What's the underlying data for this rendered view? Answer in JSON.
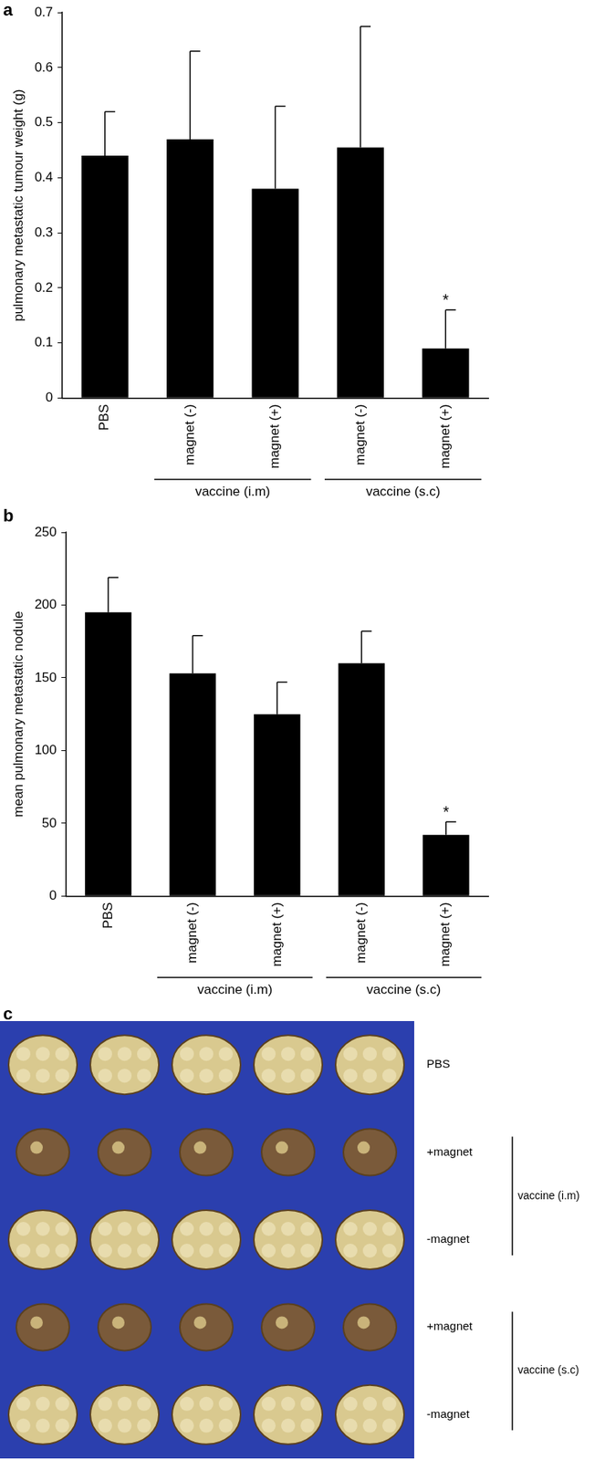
{
  "chart_data": [
    {
      "type": "bar",
      "panel": "a",
      "y_label": "pulmonary metastatic tumour weight (g)",
      "categories": [
        "PBS",
        "magnet (-)",
        "magnet (+)",
        "magnet (-)",
        "magnet (+)"
      ],
      "groups": [
        null,
        "vaccine (i.m)",
        "vaccine (i.m)",
        "vaccine (s.c)",
        "vaccine (s.c)"
      ],
      "values": [
        0.44,
        0.47,
        0.38,
        0.455,
        0.09
      ],
      "error": [
        0.08,
        0.16,
        0.15,
        0.22,
        0.07
      ],
      "significance": [
        null,
        null,
        null,
        null,
        "*"
      ],
      "color": "#000000",
      "ylim": [
        0,
        0.7
      ],
      "yticks": [
        0,
        0.1,
        0.2,
        0.3,
        0.4,
        0.5,
        0.6,
        0.7
      ],
      "grid": false
    },
    {
      "type": "bar",
      "panel": "b",
      "y_label": "mean pulmonary metastatic nodule",
      "categories": [
        "PBS",
        "magnet (-)",
        "magnet (+)",
        "magnet (-)",
        "magnet (+)"
      ],
      "groups": [
        null,
        "vaccine (i.m)",
        "vaccine (i.m)",
        "vaccine (s.c)",
        "vaccine (s.c)"
      ],
      "values": [
        195,
        153,
        125,
        160,
        42
      ],
      "error": [
        24,
        26,
        22,
        22,
        9
      ],
      "significance": [
        null,
        null,
        null,
        null,
        "*"
      ],
      "color": "#000000",
      "ylim": [
        0,
        250
      ],
      "yticks": [
        0,
        50,
        100,
        150,
        200,
        250
      ],
      "grid": false
    }
  ],
  "photo_panel": {
    "panel": "c",
    "rows": [
      {
        "label": "PBS",
        "group": null
      },
      {
        "label": "+magnet",
        "group": "vaccine (i.m)"
      },
      {
        "label": "-magnet",
        "group": "vaccine (i.m)"
      },
      {
        "label": "+magnet",
        "group": "vaccine (s.c)"
      },
      {
        "label": "-magnet",
        "group": "vaccine (s.c)"
      }
    ]
  }
}
